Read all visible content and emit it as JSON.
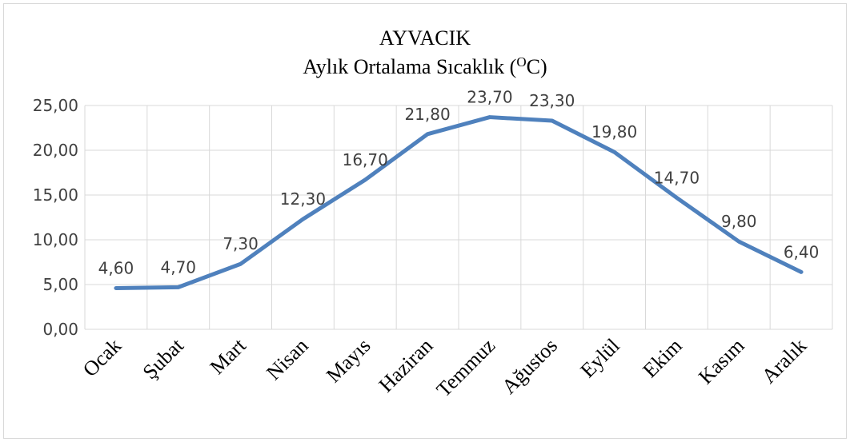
{
  "chart_data": {
    "type": "line",
    "title": "AYVACIK",
    "subtitle": [
      "Aylık Ortalama Sıcaklık (",
      "O",
      "C)"
    ],
    "categories": [
      "Ocak",
      "Şubat",
      "Mart",
      "Nisan",
      "Mayıs",
      "Haziran",
      "Temmuz",
      "Ağustos",
      "Eylül",
      "Ekim",
      "Kasım",
      "Aralık"
    ],
    "series": [
      {
        "name": "Aylık Ortalama Sıcaklık",
        "color": "#4f81bd",
        "values": [
          4.6,
          4.7,
          7.3,
          12.3,
          16.7,
          21.8,
          23.7,
          23.3,
          19.8,
          14.7,
          9.8,
          6.4
        ],
        "value_labels": [
          "4,60",
          "4,70",
          "7,30",
          "12,30",
          "16,70",
          "21,80",
          "23,70",
          "23,30",
          "19,80",
          "14,70",
          "9,80",
          "6,40"
        ]
      }
    ],
    "ylim": [
      0,
      25
    ],
    "yticks": [
      {
        "value": 0,
        "label": "0,00"
      },
      {
        "value": 5,
        "label": "5,00"
      },
      {
        "value": 10,
        "label": "10,00"
      },
      {
        "value": 15,
        "label": "15,00"
      },
      {
        "value": 20,
        "label": "20,00"
      },
      {
        "value": 25,
        "label": "25,00"
      }
    ],
    "grid": true
  }
}
